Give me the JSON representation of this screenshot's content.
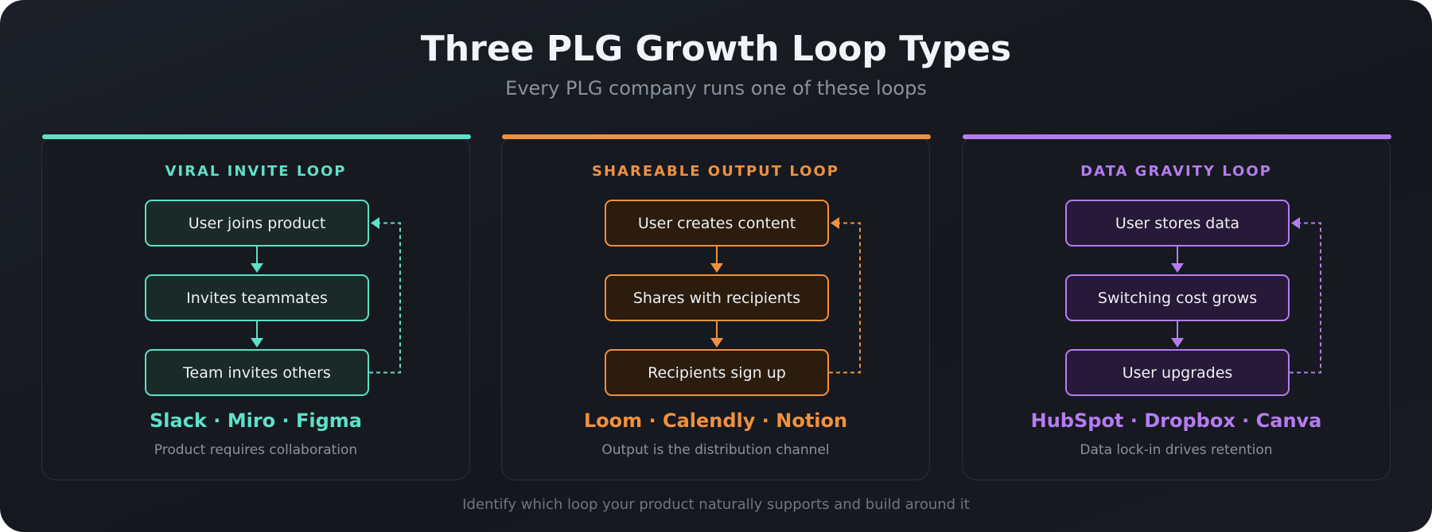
{
  "header": {
    "title": "Three PLG Growth Loop Types",
    "subtitle": "Every PLG company runs one of these loops"
  },
  "loops": [
    {
      "title": "VIRAL INVITE LOOP",
      "steps": [
        "User joins product",
        "Invites teammates",
        "Team invites others"
      ],
      "examples": "Slack · Miro · Figma",
      "description": "Product requires collaboration"
    },
    {
      "title": "SHAREABLE OUTPUT LOOP",
      "steps": [
        "User creates content",
        "Shares with recipients",
        "Recipients sign up"
      ],
      "examples": "Loom · Calendly · Notion",
      "description": "Output is the distribution channel"
    },
    {
      "title": "DATA GRAVITY LOOP",
      "steps": [
        "User stores data",
        "Switching cost grows",
        "User upgrades"
      ],
      "examples": "HubSpot · Dropbox · Canva",
      "description": "Data lock-in drives retention"
    }
  ],
  "footer": "Identify which loop your product naturally supports and build around it"
}
